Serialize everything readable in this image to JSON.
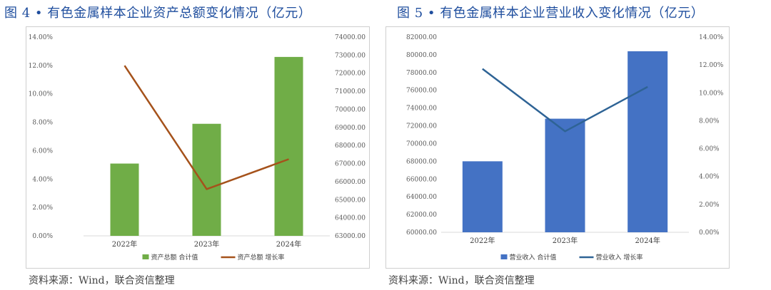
{
  "figures": [
    {
      "title": "图 4 • 有色金属样本企业资产总额变化情况（亿元）",
      "source": "资料来源：Wind，联合资信整理"
    },
    {
      "title": "图 5 • 有色金属样本企业营业收入变化情况（亿元）",
      "source": "资料来源：Wind，联合资信整理"
    }
  ],
  "chart_data": [
    {
      "type": "bar",
      "categories": [
        "2022年",
        "2023年",
        "2024年"
      ],
      "series": [
        {
          "name": "资产总额 合计值",
          "type": "bar",
          "axis": "right",
          "color": "#70ad47",
          "values": [
            67000,
            69200,
            72900
          ]
        },
        {
          "name": "资产总额 增长率",
          "type": "line",
          "axis": "left",
          "color": "#a5521b",
          "values": [
            0.1199,
            0.0329,
            0.054
          ]
        }
      ],
      "left_axis": {
        "min": 0,
        "max": 0.14,
        "ticks": [
          "0.00%",
          "2.00%",
          "4.00%",
          "6.00%",
          "8.00%",
          "10.00%",
          "12.00%",
          "14.00%"
        ]
      },
      "right_axis": {
        "min": 63000,
        "max": 74000,
        "ticks": [
          "63000.00",
          "64000.00",
          "65000.00",
          "66000.00",
          "67000.00",
          "68000.00",
          "69000.00",
          "70000.00",
          "71000.00",
          "72000.00",
          "73000.00",
          "74000.00"
        ]
      },
      "legend_position": "bottom"
    },
    {
      "type": "bar",
      "categories": [
        "2022年",
        "2023年",
        "2024年"
      ],
      "series": [
        {
          "name": "营业收入 合计值",
          "type": "bar",
          "axis": "left",
          "color": "#4472c4",
          "values": [
            68000,
            72800,
            80400
          ]
        },
        {
          "name": "营业收入 增长率",
          "type": "line",
          "axis": "right",
          "color": "#2e6395",
          "values": [
            0.1172,
            0.0724,
            0.1043
          ]
        }
      ],
      "left_axis": {
        "min": 60000,
        "max": 82000,
        "ticks": [
          "60000.00",
          "62000.00",
          "64000.00",
          "66000.00",
          "68000.00",
          "70000.00",
          "72000.00",
          "74000.00",
          "76000.00",
          "78000.00",
          "80000.00",
          "82000.00"
        ]
      },
      "right_axis": {
        "min": 0,
        "max": 0.14,
        "ticks": [
          "0.00%",
          "2.00%",
          "4.00%",
          "6.00%",
          "8.00%",
          "10.00%",
          "12.00%",
          "14.00%"
        ]
      },
      "legend_position": "bottom"
    }
  ]
}
